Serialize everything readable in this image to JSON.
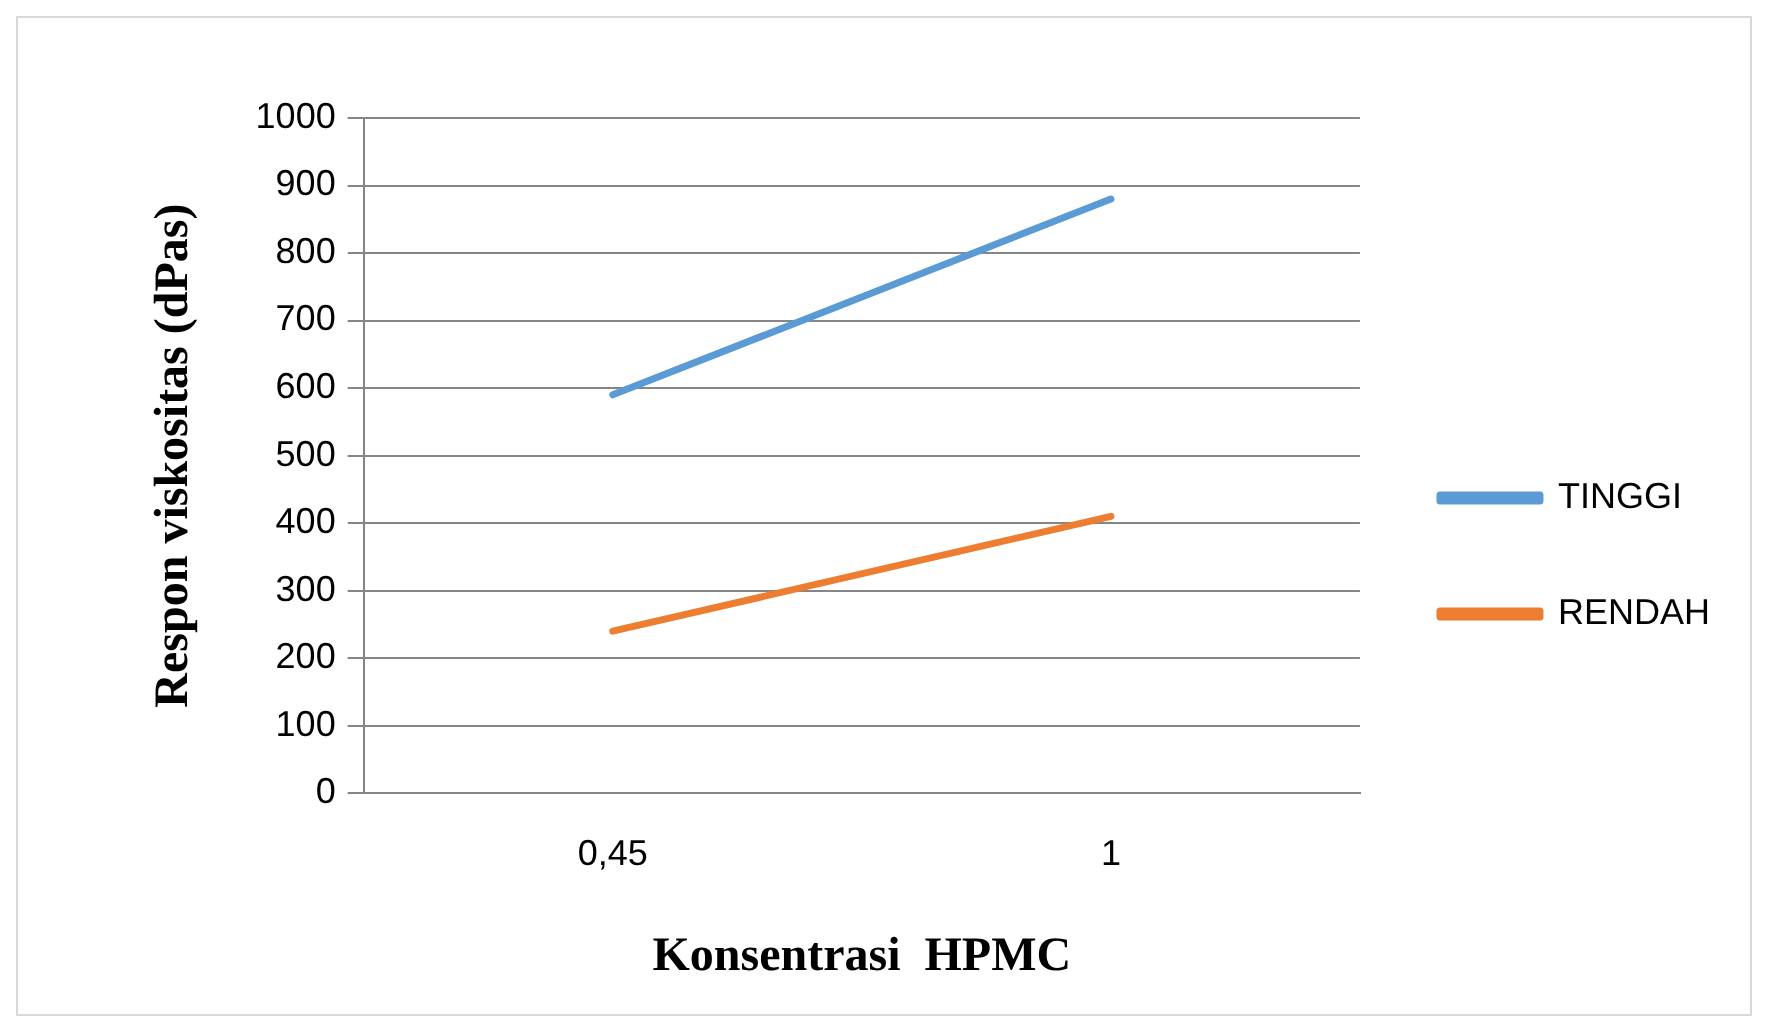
{
  "chart_data": {
    "type": "line",
    "xlabel": "Konsentrasi  HPMC",
    "ylabel": "Respon viskositas (dPas)",
    "categories": [
      "0,45",
      "1"
    ],
    "series": [
      {
        "name": "TINGGI",
        "color": "#5b9bd5",
        "values": [
          590,
          880
        ]
      },
      {
        "name": "RENDAH",
        "color": "#ed7d31",
        "values": [
          240,
          410
        ]
      }
    ],
    "ylim": [
      0,
      1000
    ],
    "yticks": [
      0,
      100,
      200,
      300,
      400,
      500,
      600,
      700,
      800,
      900,
      1000
    ],
    "grid": "y",
    "legend": "right",
    "marker": "none"
  }
}
